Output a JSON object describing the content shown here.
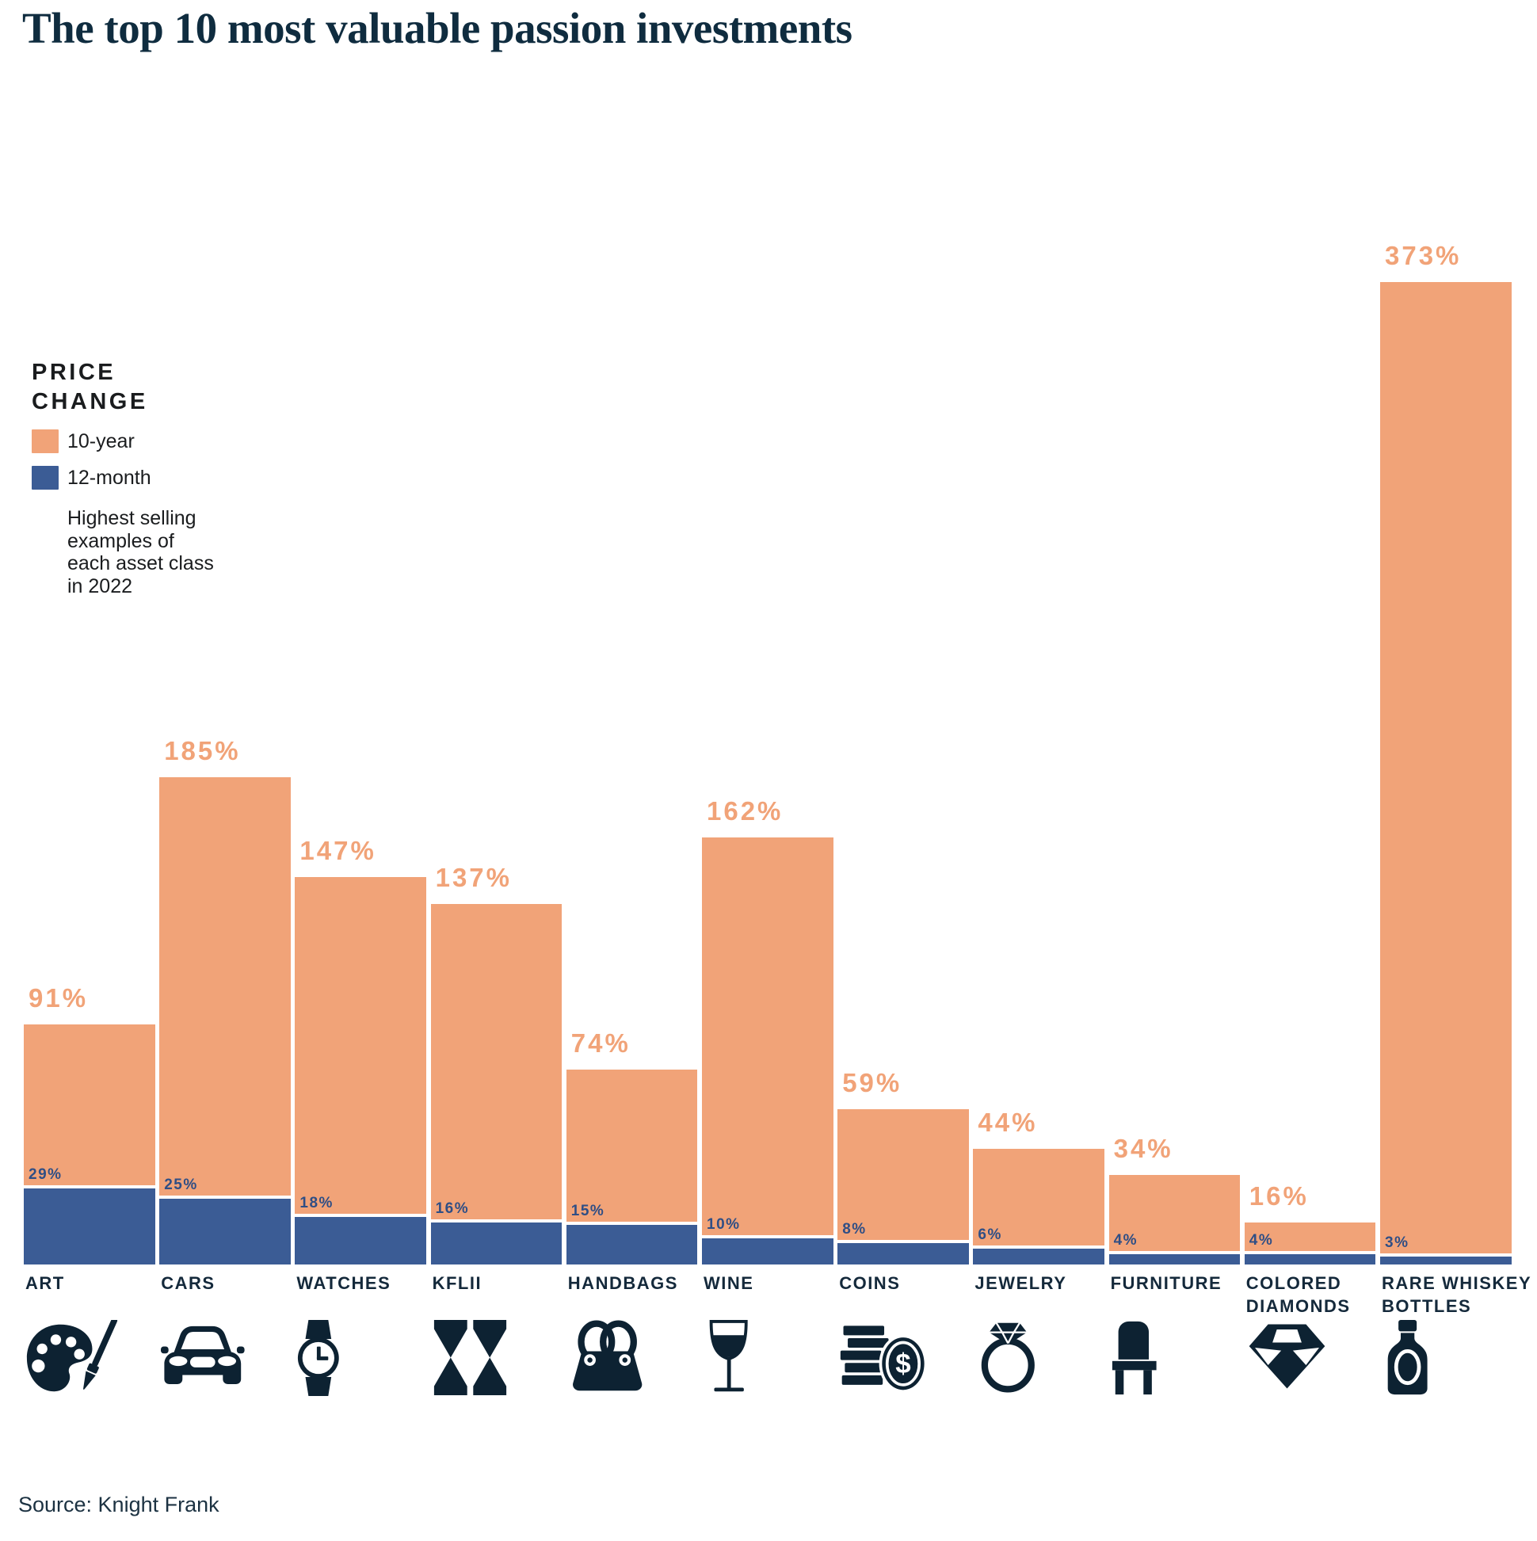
{
  "title": "The top 10 most valuable passion investments",
  "source": "Source: Knight Frank",
  "legend": {
    "heading": "PRICE CHANGE",
    "items": [
      {
        "label": "10-year",
        "color": "#F1A378"
      },
      {
        "label": "12-month",
        "color": "#3B5C95"
      }
    ],
    "note": "Highest selling examples of each asset class in 2022"
  },
  "colors": {
    "bar_10_year": "#F1A378",
    "bar_12_month": "#3B5C95",
    "value_label_10_year": "#F1A378",
    "value_label_12_month": "#2F4E85",
    "category_label": "#14293B",
    "icon_navy": "#0D2232",
    "title": "#0F2C3F"
  },
  "chart_data": {
    "type": "bar",
    "title": "The top 10 most valuable passion investments",
    "categories": [
      "ART",
      "CARS",
      "WATCHES",
      "KFLII",
      "HANDBAGS",
      "WINE",
      "COINS",
      "JEWELRY",
      "FURNITURE",
      "COLORED DIAMONDS",
      "RARE WHISKEY BOTTLES"
    ],
    "series": [
      {
        "name": "10-year",
        "color": "#F1A378",
        "values": [
          91,
          185,
          147,
          137,
          74,
          162,
          59,
          44,
          34,
          16,
          373
        ]
      },
      {
        "name": "12-month",
        "color": "#3B5C95",
        "values": [
          29,
          25,
          18,
          16,
          15,
          10,
          8,
          6,
          4,
          4,
          3
        ]
      }
    ],
    "unit": "%",
    "icons": [
      "palette-icon",
      "car-icon",
      "watch-icon",
      "kflii-icon",
      "handbag-icon",
      "wine-glass-icon",
      "coins-icon",
      "ring-icon",
      "chair-icon",
      "diamond-icon",
      "whiskey-bottle-icon"
    ],
    "ylim": [
      0,
      373
    ],
    "grid": false,
    "axis_lines": false,
    "legend_position": "upper-left",
    "value_label_style": "above-bar"
  }
}
